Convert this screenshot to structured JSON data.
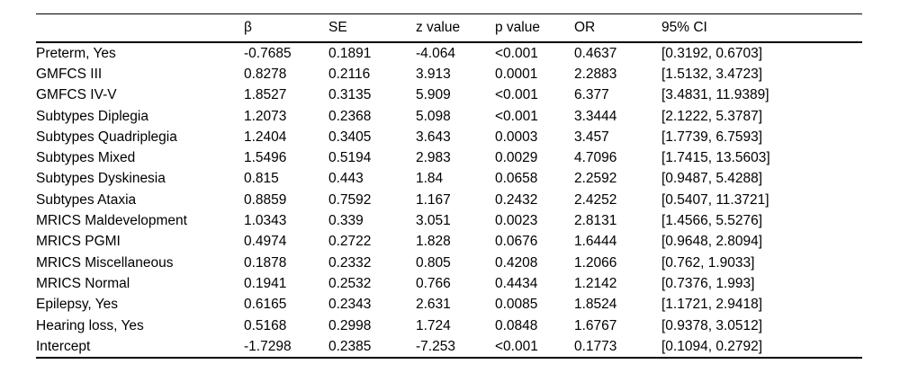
{
  "table": {
    "columns": [
      {
        "label": ""
      },
      {
        "label": "β"
      },
      {
        "label": "SE"
      },
      {
        "label": "z value"
      },
      {
        "label": "p value"
      },
      {
        "label": "OR"
      },
      {
        "label": "95% CI"
      }
    ],
    "rows": [
      [
        "Preterm, Yes",
        "-0.7685",
        "0.1891",
        "-4.064",
        "<0.001",
        "0.4637",
        "[0.3192, 0.6703]"
      ],
      [
        "GMFCS III",
        "0.8278",
        "0.2116",
        "3.913",
        "0.0001",
        "2.2883",
        "[1.5132, 3.4723]"
      ],
      [
        "GMFCS IV-V",
        "1.8527",
        "0.3135",
        "5.909",
        "<0.001",
        "6.377",
        "[3.4831, 11.9389]"
      ],
      [
        "Subtypes Diplegia",
        "1.2073",
        "0.2368",
        "5.098",
        "<0.001",
        "3.3444",
        "[2.1222, 5.3787]"
      ],
      [
        "Subtypes Quadriplegia",
        "1.2404",
        "0.3405",
        "3.643",
        "0.0003",
        "3.457",
        "[1.7739, 6.7593]"
      ],
      [
        "Subtypes Mixed",
        "1.5496",
        "0.5194",
        "2.983",
        "0.0029",
        "4.7096",
        "[1.7415, 13.5603]"
      ],
      [
        "Subtypes Dyskinesia",
        "0.815",
        "0.443",
        "1.84",
        "0.0658",
        "2.2592",
        "[0.9487, 5.4288]"
      ],
      [
        "Subtypes Ataxia",
        "0.8859",
        "0.7592",
        "1.167",
        "0.2432",
        "2.4252",
        "[0.5407, 11.3721]"
      ],
      [
        "MRICS Maldevelopment",
        "1.0343",
        "0.339",
        "3.051",
        "0.0023",
        "2.8131",
        "[1.4566, 5.5276]"
      ],
      [
        "MRICS PGMI",
        "0.4974",
        "0.2722",
        "1.828",
        "0.0676",
        "1.6444",
        "[0.9648, 2.8094]"
      ],
      [
        "MRICS Miscellaneous",
        "0.1878",
        "0.2332",
        "0.805",
        "0.4208",
        "1.2066",
        "[0.762, 1.9033]"
      ],
      [
        "MRICS Normal",
        "0.1941",
        "0.2532",
        "0.766",
        "0.4434",
        "1.2142",
        "[0.7376, 1.993]"
      ],
      [
        "Epilepsy, Yes",
        "0.6165",
        "0.2343",
        "2.631",
        "0.0085",
        "1.8524",
        "[1.1721, 2.9418]"
      ],
      [
        "Hearing loss, Yes",
        "0.5168",
        "0.2998",
        "1.724",
        "0.0848",
        "1.6767",
        "[0.9378, 3.0512]"
      ],
      [
        "Intercept",
        "-1.7298",
        "0.2385",
        "-7.253",
        "<0.001",
        "0.1773",
        "[0.1094, 0.2792]"
      ]
    ]
  }
}
